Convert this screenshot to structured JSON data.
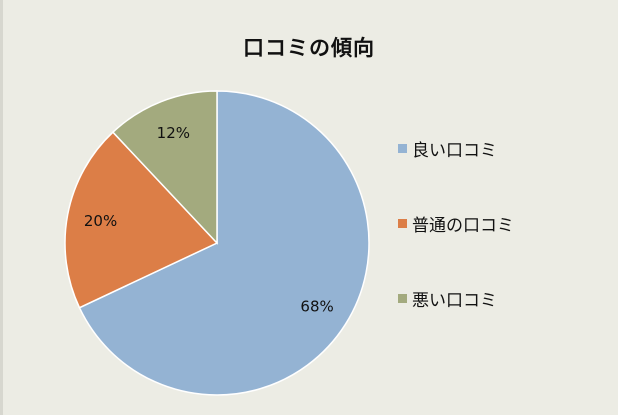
{
  "chart_data": {
    "type": "pie",
    "title": "口コミの傾向",
    "categories": [
      "良い口コミ",
      "普通の口コミ",
      "悪い口コミ"
    ],
    "values": [
      68,
      20,
      12
    ],
    "data_labels": [
      "68%",
      "20%",
      "12%"
    ],
    "colors": [
      "#94b3d3",
      "#dc7e47",
      "#a3aa7e"
    ],
    "legend": "right",
    "start_angle": "top",
    "direction": "clockwise"
  }
}
